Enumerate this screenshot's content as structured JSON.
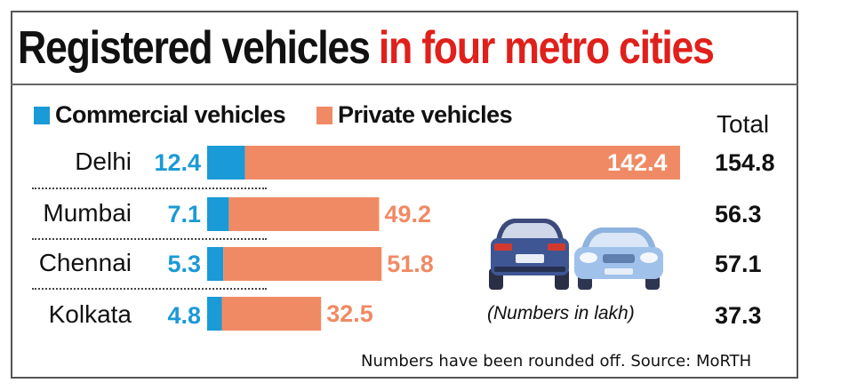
{
  "title": {
    "part1": "Registered vehicles",
    "part2": "in four metro cities"
  },
  "colors": {
    "commercial": "#1a9ad6",
    "private": "#f08a64",
    "title_accent": "#e0201b"
  },
  "chart_data": {
    "type": "bar",
    "orientation": "horizontal",
    "stacked": true,
    "title": "Registered vehicles in four metro cities",
    "categories": [
      "Delhi",
      "Mumbai",
      "Chennai",
      "Kolkata"
    ],
    "series": [
      {
        "name": "Commercial vehicles",
        "values": [
          12.4,
          7.1,
          5.3,
          4.8
        ],
        "labels": [
          "12.4",
          "7.1",
          "5.3",
          "4.8"
        ]
      },
      {
        "name": "Private vehicles",
        "values": [
          142.4,
          49.2,
          51.8,
          32.5
        ],
        "labels": [
          "142.4",
          "49.2",
          "51.8",
          "32.5"
        ]
      }
    ],
    "totals_header": "Total",
    "totals": [
      "154.8",
      "56.3",
      "57.1",
      "37.3"
    ],
    "unit_note": "(Numbers in lakh)",
    "legend_position": "top-left",
    "grid": false,
    "xlim": [
      0,
      154.8
    ]
  },
  "footer": {
    "source": "Numbers have been rounded off. Source: MoRTH"
  },
  "illustration": {
    "icon": "two-cars-illustration"
  }
}
